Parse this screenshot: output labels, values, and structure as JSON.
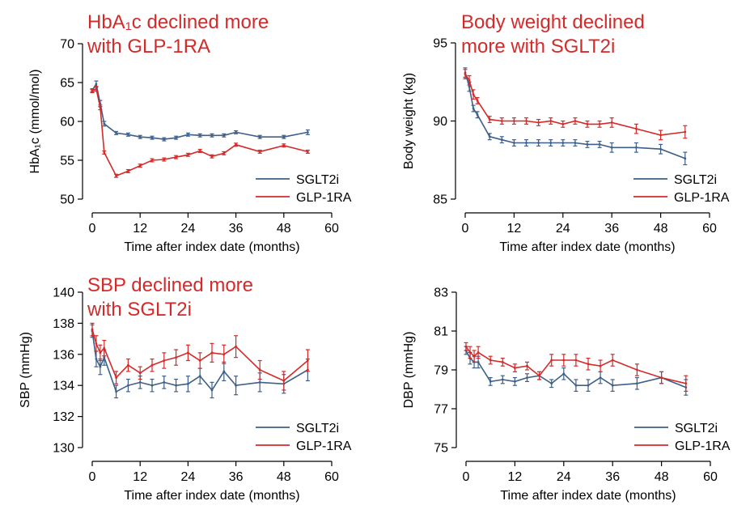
{
  "colors": {
    "sglt2i": "#3d5f88",
    "glp1ra": "#d42a2a",
    "headline": "#d42a2a"
  },
  "chart_data": [
    {
      "type": "line",
      "headline": [
        "HbA₁c declined more",
        "with GLP-1RA"
      ],
      "xlabel": "Time after index date (months)",
      "ylabel": "HbA₁c (mmol/mol)",
      "xlim": [
        0,
        60
      ],
      "ylim": [
        50,
        70
      ],
      "xticks": [
        0,
        12,
        24,
        36,
        48,
        60
      ],
      "yticks": [
        50,
        55,
        60,
        65,
        70
      ],
      "grid": false,
      "legend_position": "bottom-right",
      "series": [
        {
          "name": "SGLT2i",
          "color": "#3d5f88",
          "x": [
            0,
            1,
            2,
            3,
            6,
            9,
            12,
            15,
            18,
            21,
            24,
            27,
            30,
            33,
            36,
            42,
            48,
            54
          ],
          "y": [
            64.0,
            64.8,
            62.3,
            59.7,
            58.5,
            58.3,
            58.0,
            57.9,
            57.7,
            57.9,
            58.3,
            58.2,
            58.2,
            58.2,
            58.6,
            58.0,
            58.0,
            58.6
          ],
          "err": [
            0.2,
            0.4,
            0.4,
            0.3,
            0.2,
            0.2,
            0.2,
            0.2,
            0.2,
            0.2,
            0.2,
            0.2,
            0.2,
            0.2,
            0.2,
            0.2,
            0.2,
            0.3
          ]
        },
        {
          "name": "GLP-1RA",
          "color": "#d42a2a",
          "x": [
            0,
            1,
            2,
            3,
            6,
            9,
            12,
            15,
            18,
            21,
            24,
            27,
            30,
            33,
            36,
            42,
            48,
            54
          ],
          "y": [
            63.9,
            64.2,
            61.8,
            56.0,
            53.0,
            53.6,
            54.3,
            55.0,
            55.1,
            55.4,
            55.7,
            56.2,
            55.5,
            55.9,
            57.0,
            56.1,
            56.9,
            56.1
          ],
          "err": [
            0.2,
            0.3,
            0.3,
            0.2,
            0.2,
            0.2,
            0.2,
            0.2,
            0.2,
            0.2,
            0.2,
            0.2,
            0.2,
            0.2,
            0.2,
            0.2,
            0.2,
            0.2
          ]
        }
      ]
    },
    {
      "type": "line",
      "headline": [
        "Body weight declined",
        "more with SGLT2i"
      ],
      "xlabel": "Time after index date (months)",
      "ylabel": "Body weight (kg)",
      "xlim": [
        0,
        60
      ],
      "ylim": [
        85,
        95
      ],
      "xticks": [
        0,
        12,
        24,
        36,
        48,
        60
      ],
      "yticks": [
        85,
        90,
        95
      ],
      "grid": false,
      "legend_position": "bottom-right",
      "series": [
        {
          "name": "SGLT2i",
          "color": "#3d5f88",
          "x": [
            0,
            1,
            2,
            3,
            6,
            9,
            12,
            15,
            18,
            21,
            24,
            27,
            30,
            33,
            36,
            42,
            48,
            54
          ],
          "y": [
            93.1,
            92.2,
            90.8,
            90.4,
            89.0,
            88.8,
            88.6,
            88.6,
            88.6,
            88.6,
            88.6,
            88.6,
            88.5,
            88.5,
            88.3,
            88.3,
            88.2,
            87.6
          ],
          "err": [
            0.3,
            0.3,
            0.2,
            0.2,
            0.2,
            0.2,
            0.2,
            0.2,
            0.2,
            0.2,
            0.2,
            0.2,
            0.2,
            0.2,
            0.3,
            0.3,
            0.3,
            0.4
          ]
        },
        {
          "name": "GLP-1RA",
          "color": "#d42a2a",
          "x": [
            0,
            1,
            2,
            3,
            6,
            9,
            12,
            15,
            18,
            21,
            24,
            27,
            30,
            33,
            36,
            42,
            48,
            54
          ],
          "y": [
            93.0,
            92.6,
            91.7,
            91.3,
            90.1,
            90.0,
            90.0,
            90.0,
            89.9,
            90.0,
            89.8,
            90.0,
            89.8,
            89.8,
            89.9,
            89.5,
            89.1,
            89.3
          ],
          "err": [
            0.3,
            0.3,
            0.3,
            0.2,
            0.2,
            0.2,
            0.2,
            0.2,
            0.2,
            0.2,
            0.2,
            0.2,
            0.2,
            0.2,
            0.3,
            0.3,
            0.3,
            0.4
          ]
        }
      ]
    },
    {
      "type": "line",
      "headline": [
        "SBP declined more",
        "with SGLT2i"
      ],
      "xlabel": "Time after index date (months)",
      "ylabel": "SBP (mmHg)",
      "xlim": [
        0,
        60
      ],
      "ylim": [
        130,
        140
      ],
      "xticks": [
        0,
        12,
        24,
        36,
        48,
        60
      ],
      "yticks": [
        130,
        132,
        134,
        136,
        138,
        140
      ],
      "grid": false,
      "legend_position": "bottom-right",
      "series": [
        {
          "name": "SGLT2i",
          "color": "#3d5f88",
          "x": [
            0,
            1,
            2,
            3,
            6,
            9,
            12,
            15,
            18,
            21,
            24,
            27,
            30,
            33,
            36,
            42,
            48,
            54
          ],
          "y": [
            137.5,
            135.7,
            135.2,
            135.8,
            133.6,
            134.0,
            134.2,
            134.0,
            134.2,
            134.0,
            134.1,
            134.6,
            133.7,
            134.9,
            134.0,
            134.2,
            134.1,
            135.0
          ],
          "err": [
            0.4,
            0.5,
            0.5,
            0.5,
            0.4,
            0.4,
            0.4,
            0.4,
            0.4,
            0.4,
            0.5,
            0.5,
            0.5,
            0.6,
            0.6,
            0.6,
            0.6,
            0.7
          ]
        },
        {
          "name": "GLP-1RA",
          "color": "#d42a2a",
          "x": [
            0,
            1,
            2,
            3,
            6,
            9,
            12,
            15,
            18,
            21,
            24,
            27,
            30,
            33,
            36,
            42,
            48,
            54
          ],
          "y": [
            137.6,
            136.7,
            136.1,
            136.4,
            134.5,
            135.3,
            134.8,
            135.3,
            135.6,
            135.8,
            136.1,
            135.6,
            136.1,
            136.0,
            136.5,
            135.0,
            134.3,
            135.6
          ],
          "err": [
            0.4,
            0.5,
            0.5,
            0.5,
            0.4,
            0.4,
            0.4,
            0.4,
            0.5,
            0.5,
            0.5,
            0.5,
            0.6,
            0.6,
            0.7,
            0.6,
            0.6,
            0.7
          ]
        }
      ]
    },
    {
      "type": "line",
      "headline": [],
      "xlabel": "Time after index date (months)",
      "ylabel": "DBP (mmHg)",
      "xlim": [
        0,
        60
      ],
      "ylim": [
        75,
        83
      ],
      "xticks": [
        0,
        12,
        24,
        36,
        48,
        60
      ],
      "yticks": [
        75,
        77,
        79,
        81,
        83
      ],
      "grid": false,
      "legend_position": "bottom-right",
      "series": [
        {
          "name": "SGLT2i",
          "color": "#3d5f88",
          "x": [
            0,
            1,
            2,
            3,
            6,
            9,
            12,
            15,
            18,
            21,
            24,
            27,
            30,
            33,
            36,
            42,
            48,
            54
          ],
          "y": [
            80.0,
            79.6,
            79.4,
            79.4,
            78.4,
            78.5,
            78.4,
            78.6,
            78.7,
            78.3,
            78.8,
            78.2,
            78.2,
            78.6,
            78.2,
            78.3,
            78.6,
            78.1
          ],
          "err": [
            0.2,
            0.3,
            0.3,
            0.3,
            0.2,
            0.2,
            0.2,
            0.2,
            0.2,
            0.2,
            0.3,
            0.3,
            0.3,
            0.3,
            0.3,
            0.3,
            0.3,
            0.4
          ]
        },
        {
          "name": "GLP-1RA",
          "color": "#d42a2a",
          "x": [
            0,
            1,
            2,
            3,
            6,
            9,
            12,
            15,
            18,
            21,
            24,
            27,
            30,
            33,
            36,
            42,
            48,
            54
          ],
          "y": [
            80.2,
            79.9,
            79.7,
            79.9,
            79.5,
            79.4,
            79.1,
            79.2,
            78.7,
            79.5,
            79.5,
            79.5,
            79.3,
            79.2,
            79.5,
            79.0,
            78.6,
            78.3
          ],
          "err": [
            0.2,
            0.3,
            0.3,
            0.3,
            0.2,
            0.2,
            0.2,
            0.2,
            0.2,
            0.3,
            0.3,
            0.3,
            0.3,
            0.3,
            0.3,
            0.3,
            0.3,
            0.4
          ]
        }
      ]
    }
  ]
}
